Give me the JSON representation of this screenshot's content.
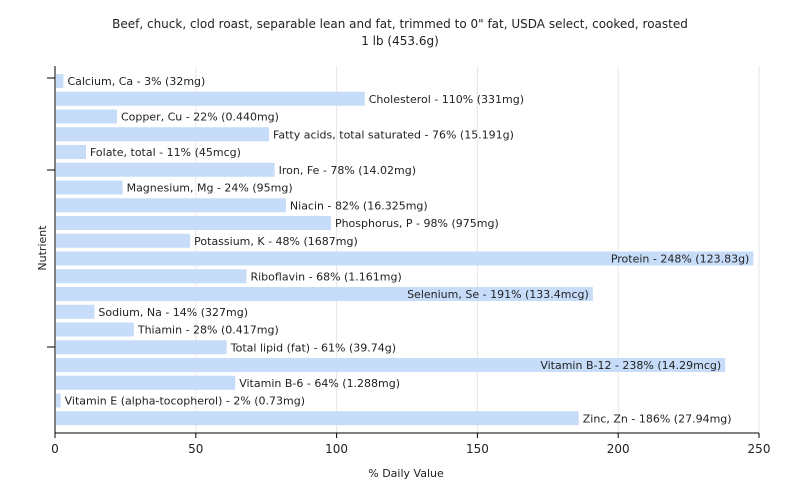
{
  "chart_data": {
    "type": "bar",
    "orientation": "horizontal",
    "title": "Beef, chuck, clod roast, separable lean and fat, trimmed to 0\" fat, USDA select, cooked, roasted",
    "subtitle": "1 lb (453.6g)",
    "xlabel": "% Daily Value",
    "ylabel": "Nutrient",
    "xlim": [
      0,
      250
    ],
    "xticks": [
      0,
      50,
      100,
      150,
      200,
      250
    ],
    "grid": true,
    "bar_color": "#c6dcf9",
    "categories": [
      "Calcium, Ca",
      "Cholesterol",
      "Copper, Cu",
      "Fatty acids, total saturated",
      "Folate, total",
      "Iron, Fe",
      "Magnesium, Mg",
      "Niacin",
      "Phosphorus, P",
      "Potassium, K",
      "Protein",
      "Riboflavin",
      "Selenium, Se",
      "Sodium, Na",
      "Thiamin",
      "Total lipid (fat)",
      "Vitamin B-12",
      "Vitamin B-6",
      "Vitamin E (alpha-tocopherol)",
      "Zinc, Zn"
    ],
    "values": [
      3,
      110,
      22,
      76,
      11,
      78,
      24,
      82,
      98,
      48,
      248,
      68,
      191,
      14,
      28,
      61,
      238,
      64,
      2,
      186
    ],
    "labels": [
      "Calcium, Ca - 3% (32mg)",
      "Cholesterol - 110% (331mg)",
      "Copper, Cu - 22% (0.440mg)",
      "Fatty acids, total saturated - 76% (15.191g)",
      "Folate, total - 11% (45mcg)",
      "Iron, Fe - 78% (14.02mg)",
      "Magnesium, Mg - 24% (95mg)",
      "Niacin - 82% (16.325mg)",
      "Phosphorus, P - 98% (975mg)",
      "Potassium, K - 48% (1687mg)",
      "Protein - 248% (123.83g)",
      "Riboflavin - 68% (1.161mg)",
      "Selenium, Se - 191% (133.4mcg)",
      "Sodium, Na - 14% (327mg)",
      "Thiamin - 28% (0.417mg)",
      "Total lipid (fat) - 61% (39.74g)",
      "Vitamin B-12 - 238% (14.29mcg)",
      "Vitamin B-6 - 64% (1.288mg)",
      "Vitamin E (alpha-tocopherol) - 2% (0.73mg)",
      "Zinc, Zn - 186% (27.94mg)"
    ]
  }
}
